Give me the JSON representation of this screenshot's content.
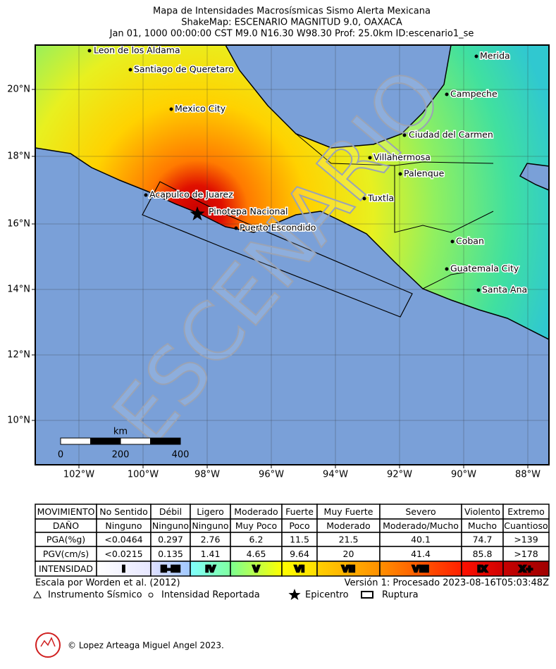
{
  "header": {
    "title": "Mapa de Intensidades Macrosísmicas Sismo Alerta Mexicana",
    "subtitle": "ShakeMap: ESCENARIO MAGNITUD 9.0, OAXACA",
    "info": "Jan 01, 1000 00:00:00 CST M9.0 N16.30 W98.30 Prof: 25.0km ID:escenario1_se"
  },
  "map": {
    "watermark": "ESCENARIO",
    "lon_labels": [
      "102°W",
      "100°W",
      "98°W",
      "96°W",
      "94°W",
      "92°W",
      "90°W",
      "88°W"
    ],
    "lat_labels": [
      "20°N",
      "18°N",
      "16°N",
      "14°N",
      "12°N",
      "10°N"
    ],
    "cities": [
      "Leon de los Aldama",
      "Santiago de Queretaro",
      "Mexico City",
      "Acapulco de Juarez",
      "Pinotepa Nacional",
      "Puerto Escondido",
      "Merida",
      "Campeche",
      "Ciudad del Carmen",
      "Villahermosa",
      "Palenque",
      "Tuxtla",
      "Coban",
      "Guatemala City",
      "Santa Ana"
    ],
    "scale": {
      "unit": "km",
      "labels": [
        "0",
        "200",
        "400"
      ]
    }
  },
  "table": {
    "rows": [
      [
        "MOVIMIENTO",
        "No Sentido",
        "Débil",
        "Ligero",
        "Moderado",
        "Fuerte",
        "Muy Fuerte",
        "Severo",
        "Violento",
        "Extremo"
      ],
      [
        "DAÑO",
        "Ninguno",
        "Ninguno",
        "Ninguno",
        "Muy Poco",
        "Poco",
        "Moderado",
        "Moderado/Mucho",
        "Mucho",
        "Cuantioso"
      ],
      [
        "PGA(%g)",
        "<0.0464",
        "0.297",
        "2.76",
        "6.2",
        "11.5",
        "21.5",
        "40.1",
        "74.7",
        ">139"
      ],
      [
        "PGV(cm/s)",
        "<0.0215",
        "0.135",
        "1.41",
        "4.65",
        "9.64",
        "20",
        "41.4",
        "85.8",
        ">178"
      ],
      [
        "INTENSIDAD",
        "I",
        "II-III",
        "IV",
        "V",
        "VI",
        "VII",
        "VIII",
        "IX",
        "X+"
      ]
    ]
  },
  "footer": {
    "scale_note": "Escala por Worden et al. (2012)",
    "version": "Versión 1: Procesado 2023-08-16T05:03:48Z",
    "legend": [
      "Instrumento Sísmico",
      "Intensidad Reportada",
      "Epicentro",
      "Ruptura"
    ],
    "copyright": "© Lopez Arteaga Miguel Angel 2023."
  }
}
